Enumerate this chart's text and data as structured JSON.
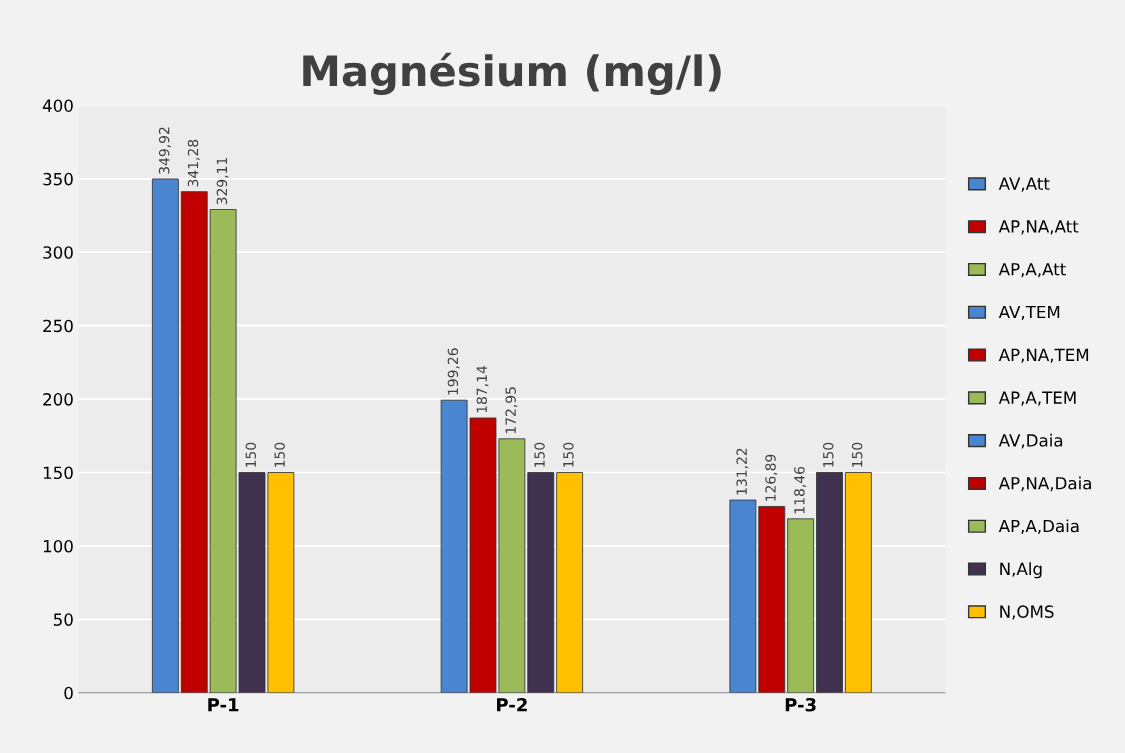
{
  "chart_data": {
    "type": "bar",
    "title": "Magnésium (mg/l)",
    "categories": [
      "P-1",
      "P-2",
      "P-3"
    ],
    "series": [
      {
        "name": "AV,Att",
        "color": "#4a86d0",
        "values": [
          349.92,
          null,
          null
        ],
        "value_labels": [
          "349,92",
          null,
          null
        ]
      },
      {
        "name": "AP,NA,Att",
        "color": "#c00000",
        "values": [
          341.28,
          null,
          null
        ],
        "value_labels": [
          "341,28",
          null,
          null
        ]
      },
      {
        "name": "AP,A,Att",
        "color": "#9bbb59",
        "values": [
          329.11,
          null,
          null
        ],
        "value_labels": [
          "329,11",
          null,
          null
        ]
      },
      {
        "name": "AV,TEM",
        "color": "#4a86d0",
        "values": [
          null,
          199.26,
          null
        ],
        "value_labels": [
          null,
          "199,26",
          null
        ]
      },
      {
        "name": "AP,NA,TEM",
        "color": "#c00000",
        "values": [
          null,
          187.14,
          null
        ],
        "value_labels": [
          null,
          "187,14",
          null
        ]
      },
      {
        "name": "AP,A,TEM",
        "color": "#9bbb59",
        "values": [
          null,
          172.95,
          null
        ],
        "value_labels": [
          null,
          "172,95",
          null
        ]
      },
      {
        "name": "AV,Daia",
        "color": "#4a86d0",
        "values": [
          null,
          null,
          131.22
        ],
        "value_labels": [
          null,
          null,
          "131,22"
        ]
      },
      {
        "name": "AP,NA,Daia",
        "color": "#c00000",
        "values": [
          null,
          null,
          126.89
        ],
        "value_labels": [
          null,
          null,
          "126,89"
        ]
      },
      {
        "name": "AP,A,Daia",
        "color": "#9bbb59",
        "values": [
          null,
          null,
          118.46
        ],
        "value_labels": [
          null,
          null,
          "118,46"
        ]
      },
      {
        "name": "N,Alg",
        "color": "#403151",
        "values": [
          150,
          150,
          150
        ],
        "value_labels": [
          "150",
          "150",
          "150"
        ]
      },
      {
        "name": "N,OMS",
        "color": "#ffc000",
        "values": [
          150,
          150,
          150
        ],
        "value_labels": [
          "150",
          "150",
          "150"
        ]
      }
    ],
    "ylim": [
      0,
      400
    ],
    "yticks": [
      0,
      50,
      100,
      150,
      200,
      250,
      300,
      350,
      400
    ],
    "grid": "y",
    "legend": "right"
  }
}
